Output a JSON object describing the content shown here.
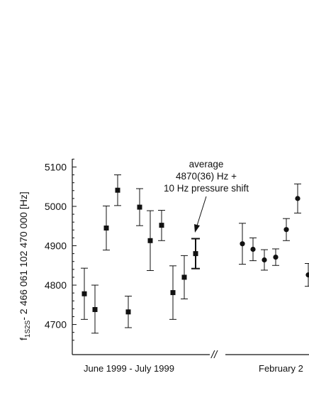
{
  "chart_data": {
    "type": "scatter",
    "ylabel_main": "f",
    "ylabel_sub": "1S2S",
    "ylabel_rest": "- 2 466 061 102 470 000 [Hz]",
    "ylim": [
      4650,
      5120
    ],
    "yticks": [
      4700,
      4800,
      4900,
      5000,
      5100
    ],
    "ytick_labels": [
      "4700",
      "4800",
      "4900",
      "5000",
      "5100"
    ],
    "grid": false,
    "axis_break": "//",
    "group_labels": [
      "June 1999 - July 1999",
      "February 2"
    ],
    "annotation": [
      "average",
      "4870(36) Hz +",
      "10 Hz pressure shift"
    ],
    "series": [
      {
        "marker": "square",
        "points": [
          {
            "y": 4778,
            "lo": 4713,
            "hi": 4843
          },
          {
            "y": 4738,
            "lo": 4678,
            "hi": 4800
          },
          {
            "y": 4945,
            "lo": 4889,
            "hi": 5001
          },
          {
            "y": 5041,
            "lo": 5002,
            "hi": 5080
          },
          {
            "y": 4732,
            "lo": 4692,
            "hi": 4772
          },
          {
            "y": 4998,
            "lo": 4951,
            "hi": 5045
          },
          {
            "y": 4913,
            "lo": 4837,
            "hi": 4989
          },
          {
            "y": 4952,
            "lo": 4913,
            "hi": 4990
          },
          {
            "y": 4781,
            "lo": 4713,
            "hi": 4849
          },
          {
            "y": 4820,
            "lo": 4765,
            "hi": 4875
          }
        ]
      },
      {
        "marker": "square",
        "emphasis": "average",
        "points": [
          {
            "y": 4880,
            "lo": 4842,
            "hi": 4918
          }
        ]
      },
      {
        "marker": "circle",
        "points": [
          {
            "y": 4905,
            "lo": 4853,
            "hi": 4957
          },
          {
            "y": 4891,
            "lo": 4862,
            "hi": 4920
          },
          {
            "y": 4864,
            "lo": 4838,
            "hi": 4890
          },
          {
            "y": 4871,
            "lo": 4850,
            "hi": 4892
          },
          {
            "y": 4941,
            "lo": 4913,
            "hi": 4969
          },
          {
            "y": 5020,
            "lo": 4983,
            "hi": 5057
          },
          {
            "y": 4826,
            "lo": 4797,
            "hi": 4855
          }
        ]
      }
    ]
  }
}
